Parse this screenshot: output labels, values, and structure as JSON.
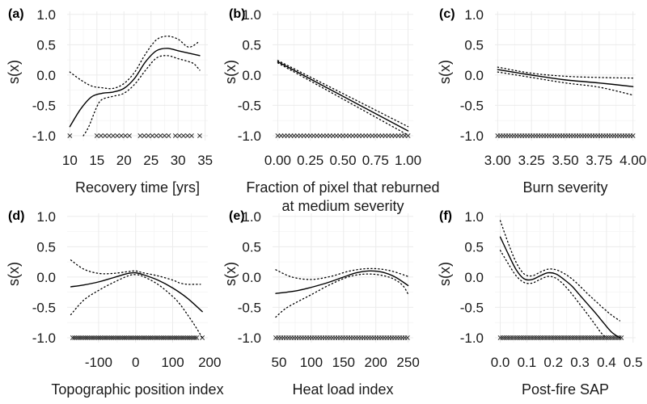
{
  "chart_data": [
    {
      "type": "line",
      "panel_label": "(a)",
      "ylabel": "s(x)",
      "xlabel": [
        "Recovery time [yrs]"
      ],
      "xlim": [
        9.5,
        35.5
      ],
      "ylim": [
        -1.08,
        1.05
      ],
      "xticks": [
        10,
        15,
        20,
        25,
        30,
        35
      ],
      "xtick_labels": [
        "10",
        "15",
        "20",
        "25",
        "30",
        "35"
      ],
      "yticks": [
        -1.0,
        -0.5,
        0.0,
        0.5,
        1.0
      ],
      "ytick_labels": [
        "-1.0",
        "-0.5",
        "0.0",
        "0.5",
        "1.0"
      ],
      "series": [
        {
          "role": "estimate",
          "x": [
            10,
            12,
            14,
            16,
            18,
            20,
            22,
            24,
            26,
            28,
            30,
            32,
            34
          ],
          "y": [
            -0.85,
            -0.56,
            -0.36,
            -0.3,
            -0.28,
            -0.22,
            -0.05,
            0.22,
            0.4,
            0.44,
            0.4,
            0.36,
            0.32
          ]
        },
        {
          "role": "upper_ci",
          "x": [
            10,
            12,
            14,
            16,
            18,
            20,
            22,
            24,
            26,
            28,
            30,
            32,
            34
          ],
          "y": [
            0.05,
            -0.08,
            -0.18,
            -0.21,
            -0.22,
            -0.14,
            0.05,
            0.35,
            0.58,
            0.64,
            0.59,
            0.46,
            0.56
          ]
        },
        {
          "role": "lower_ci",
          "x": [
            12.5,
            13.5,
            15,
            16,
            18,
            20,
            22,
            24,
            26,
            28,
            30,
            32,
            33,
            34
          ],
          "y": [
            -1.0,
            -0.85,
            -0.52,
            -0.4,
            -0.35,
            -0.3,
            -0.15,
            0.08,
            0.28,
            0.32,
            0.27,
            0.22,
            0.18,
            0.08
          ]
        }
      ],
      "rug_ranges": [
        [
          10,
          10
        ],
        [
          15,
          21
        ],
        [
          23,
          28.5
        ],
        [
          29.5,
          33
        ],
        [
          34,
          34
        ]
      ],
      "rug_step": 0.75,
      "gap_threshold": 3.0
    },
    {
      "type": "line",
      "panel_label": "(b)",
      "ylabel": "s(x)",
      "xlabel": [
        "Fraction of pixel that reburned",
        "at medium severity"
      ],
      "xlim": [
        -0.04,
        1.04
      ],
      "ylim": [
        -1.08,
        1.05
      ],
      "xticks": [
        0.0,
        0.25,
        0.5,
        0.75,
        1.0
      ],
      "xtick_labels": [
        "0.00",
        "0.25",
        "0.50",
        "0.75",
        "1.00"
      ],
      "yticks": [
        -1.0,
        -0.5,
        0.0,
        0.5,
        1.0
      ],
      "ytick_labels": [
        "-1.0",
        "-0.5",
        "0.0",
        "0.5",
        "1.0"
      ],
      "series": [
        {
          "role": "estimate",
          "x": [
            0.0,
            1.0
          ],
          "y": [
            0.22,
            -0.92
          ]
        },
        {
          "role": "upper_ci",
          "x": [
            0.0,
            1.0
          ],
          "y": [
            0.24,
            -0.85
          ]
        },
        {
          "role": "lower_ci",
          "x": [
            0.0,
            1.0
          ],
          "y": [
            0.2,
            -0.99
          ]
        }
      ],
      "rug_ranges": [
        [
          0.0,
          1.0
        ]
      ],
      "rug_step": 0.025,
      "gap_threshold": 0.2
    },
    {
      "type": "line",
      "panel_label": "(c)",
      "ylabel": "s(x)",
      "xlabel": [
        "Burn severity"
      ],
      "xlim": [
        2.98,
        4.02
      ],
      "ylim": [
        -1.08,
        1.05
      ],
      "xticks": [
        3.0,
        3.25,
        3.5,
        3.75,
        4.0
      ],
      "xtick_labels": [
        "3.00",
        "3.25",
        "3.50",
        "3.75",
        "4.00"
      ],
      "yticks": [
        -1.0,
        -0.5,
        0.0,
        0.5,
        1.0
      ],
      "ytick_labels": [
        "-1.0",
        "-0.5",
        "0.0",
        "0.5",
        "1.0"
      ],
      "series": [
        {
          "role": "estimate",
          "x": [
            3.0,
            3.25,
            3.5,
            3.75,
            4.0
          ],
          "y": [
            0.09,
            0.0,
            -0.08,
            -0.13,
            -0.19
          ]
        },
        {
          "role": "upper_ci",
          "x": [
            3.0,
            3.25,
            3.5,
            3.75,
            4.0
          ],
          "y": [
            0.13,
            0.03,
            -0.02,
            -0.04,
            -0.05
          ]
        },
        {
          "role": "lower_ci",
          "x": [
            3.0,
            3.25,
            3.5,
            3.75,
            4.0
          ],
          "y": [
            0.05,
            -0.04,
            -0.13,
            -0.2,
            -0.33
          ]
        }
      ],
      "rug_ranges": [
        [
          3.0,
          4.0
        ]
      ],
      "rug_step": 0.02,
      "gap_threshold": 0.2
    },
    {
      "type": "line",
      "panel_label": "(d)",
      "ylabel": "s(x)",
      "xlabel": [
        "Topographic position index"
      ],
      "xlim": [
        -185,
        195
      ],
      "ylim": [
        -1.08,
        1.05
      ],
      "xticks": [
        -100,
        0,
        100,
        200
      ],
      "xtick_labels": [
        "-100",
        "0",
        "100",
        "200"
      ],
      "yticks": [
        -1.0,
        -0.5,
        0.0,
        0.5,
        1.0
      ],
      "ytick_labels": [
        "-1.0",
        "-0.5",
        "0.0",
        "0.5",
        "1.0"
      ],
      "series": [
        {
          "role": "estimate",
          "x": [
            -175,
            -140,
            -100,
            -60,
            -20,
            0,
            20,
            60,
            100,
            140,
            180
          ],
          "y": [
            -0.16,
            -0.13,
            -0.08,
            -0.01,
            0.06,
            0.07,
            0.04,
            -0.05,
            -0.18,
            -0.35,
            -0.57
          ]
        },
        {
          "role": "upper_ci",
          "x": [
            -175,
            -140,
            -100,
            -60,
            -20,
            0,
            20,
            60,
            100,
            120,
            140,
            160,
            175
          ],
          "y": [
            0.28,
            0.13,
            0.06,
            0.06,
            0.09,
            0.1,
            0.07,
            0.02,
            -0.05,
            -0.1,
            -0.12,
            -0.12,
            -0.12
          ]
        },
        {
          "role": "lower_ci",
          "x": [
            -175,
            -140,
            -100,
            -60,
            -20,
            0,
            20,
            60,
            100,
            120,
            140,
            160,
            180
          ],
          "y": [
            -0.62,
            -0.38,
            -0.22,
            -0.09,
            0.02,
            0.04,
            0.01,
            -0.12,
            -0.32,
            -0.45,
            -0.62,
            -0.8,
            -1.0
          ]
        }
      ],
      "rug_ranges": [
        [
          -170,
          165
        ],
        [
          180,
          180
        ]
      ],
      "rug_step": 5,
      "gap_threshold": 10
    },
    {
      "type": "line",
      "panel_label": "(e)",
      "ylabel": "s(x)",
      "xlabel": [
        "Heat load index"
      ],
      "xlim": [
        40,
        258
      ],
      "ylim": [
        -1.08,
        1.05
      ],
      "xticks": [
        50,
        100,
        150,
        200,
        250
      ],
      "xtick_labels": [
        "50",
        "100",
        "150",
        "200",
        "250"
      ],
      "yticks": [
        -1.0,
        -0.5,
        0.0,
        0.5,
        1.0
      ],
      "ytick_labels": [
        "-1.0",
        "-0.5",
        "0.0",
        "0.5",
        "1.0"
      ],
      "series": [
        {
          "role": "estimate",
          "x": [
            45,
            80,
            120,
            150,
            170,
            190,
            210,
            230,
            250
          ],
          "y": [
            -0.27,
            -0.22,
            -0.11,
            0.0,
            0.07,
            0.1,
            0.08,
            0.0,
            -0.14
          ]
        },
        {
          "role": "upper_ci",
          "x": [
            45,
            70,
            100,
            130,
            160,
            190,
            220,
            250
          ],
          "y": [
            0.12,
            0.0,
            -0.04,
            0.01,
            0.1,
            0.14,
            0.11,
            0.01
          ]
        },
        {
          "role": "lower_ci",
          "x": [
            45,
            60,
            80,
            100,
            130,
            160,
            190,
            220,
            240,
            250
          ],
          "y": [
            -0.66,
            -0.52,
            -0.4,
            -0.29,
            -0.12,
            0.01,
            0.05,
            0.0,
            -0.12,
            -0.28
          ]
        }
      ],
      "rug_ranges": [
        [
          45,
          250
        ]
      ],
      "rug_step": 4,
      "gap_threshold": 10
    },
    {
      "type": "line",
      "panel_label": "(f)",
      "ylabel": "s(x)",
      "xlabel": [
        "Post-fire SAP"
      ],
      "xlim": [
        -0.02,
        0.51
      ],
      "ylim": [
        -1.08,
        1.05
      ],
      "xticks": [
        0.0,
        0.1,
        0.2,
        0.3,
        0.4,
        0.5
      ],
      "xtick_labels": [
        "0.0",
        "0.1",
        "0.2",
        "0.3",
        "0.4",
        "0.5"
      ],
      "yticks": [
        -1.0,
        -0.5,
        0.0,
        0.5,
        1.0
      ],
      "ytick_labels": [
        "-1.0",
        "-0.5",
        "0.0",
        "0.5",
        "1.0"
      ],
      "series": [
        {
          "role": "estimate",
          "x": [
            0.0,
            0.03,
            0.06,
            0.09,
            0.12,
            0.15,
            0.18,
            0.21,
            0.24,
            0.27,
            0.3,
            0.33,
            0.36,
            0.39,
            0.42,
            0.45
          ],
          "y": [
            0.66,
            0.38,
            0.12,
            -0.03,
            -0.04,
            0.02,
            0.07,
            0.05,
            -0.04,
            -0.15,
            -0.3,
            -0.45,
            -0.6,
            -0.76,
            -0.91,
            -1.0
          ]
        },
        {
          "role": "upper_ci",
          "x": [
            0.0,
            0.03,
            0.06,
            0.09,
            0.12,
            0.15,
            0.18,
            0.21,
            0.24,
            0.27,
            0.3,
            0.33,
            0.36,
            0.39,
            0.42,
            0.45
          ],
          "y": [
            0.93,
            0.56,
            0.24,
            0.05,
            0.02,
            0.08,
            0.13,
            0.12,
            0.06,
            -0.03,
            -0.15,
            -0.28,
            -0.4,
            -0.52,
            -0.63,
            -0.72
          ]
        },
        {
          "role": "lower_ci",
          "x": [
            0.0,
            0.03,
            0.06,
            0.09,
            0.12,
            0.15,
            0.18,
            0.21,
            0.24,
            0.27,
            0.3,
            0.33,
            0.36,
            0.38,
            0.4
          ],
          "y": [
            0.44,
            0.22,
            0.02,
            -0.09,
            -0.1,
            -0.04,
            0.01,
            -0.02,
            -0.13,
            -0.28,
            -0.45,
            -0.62,
            -0.8,
            -0.92,
            -1.0
          ]
        }
      ],
      "rug_ranges": [
        [
          0.0,
          0.46
        ]
      ],
      "rug_step": 0.008,
      "gap_threshold": 0.05
    }
  ]
}
